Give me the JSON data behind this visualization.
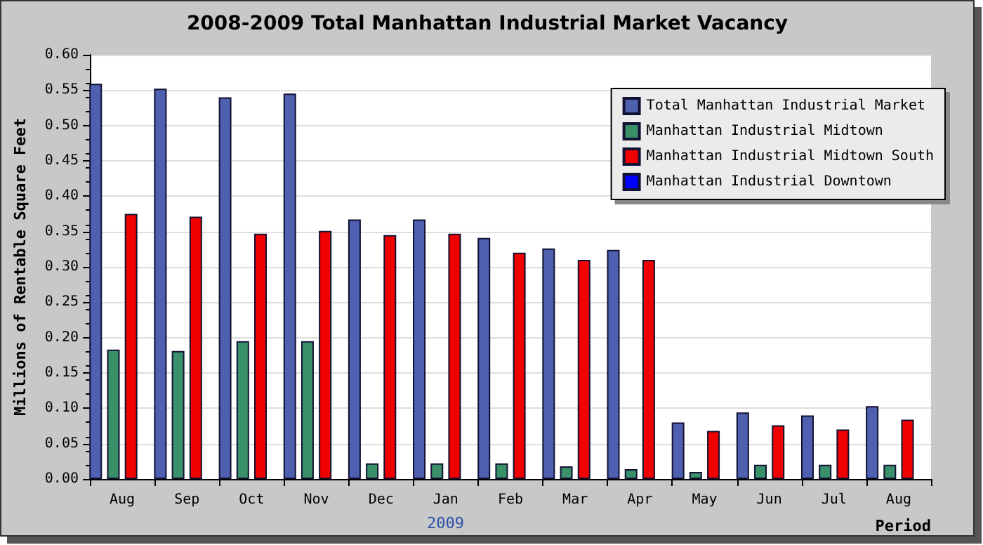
{
  "chart_data": {
    "type": "bar",
    "title": "2008-2009 Total Manhattan Industrial Market Vacancy",
    "xlabel": "Period",
    "ylabel": "Millions of Rentable Square Feet",
    "categories": [
      "Aug",
      "Sep",
      "Oct",
      "Nov",
      "Dec",
      "Jan",
      "Feb",
      "Mar",
      "Apr",
      "May",
      "Jun",
      "Jul",
      "Aug"
    ],
    "series": [
      {
        "name": "Total Manhattan Industrial Market",
        "color": "#5060b0",
        "values": [
          0.559,
          0.552,
          0.54,
          0.545,
          0.367,
          0.367,
          0.341,
          0.326,
          0.324,
          0.08,
          0.094,
          0.09,
          0.103
        ]
      },
      {
        "name": "Manhattan Industrial Midtown",
        "color": "#3a9068",
        "values": [
          0.183,
          0.181,
          0.195,
          0.195,
          0.022,
          0.022,
          0.022,
          0.018,
          0.014,
          0.01,
          0.02,
          0.02,
          0.02
        ]
      },
      {
        "name": "Manhattan Industrial Midtown South",
        "color": "#f00000",
        "values": [
          0.375,
          0.371,
          0.347,
          0.351,
          0.345,
          0.347,
          0.32,
          0.31,
          0.31,
          0.068,
          0.076,
          0.07,
          0.084
        ]
      },
      {
        "name": "Manhattan Industrial Downtown",
        "color": "#0000ff",
        "values": [
          null,
          null,
          null,
          null,
          null,
          null,
          null,
          null,
          null,
          null,
          null,
          null,
          null
        ]
      }
    ],
    "ylim": [
      0,
      0.6
    ],
    "yticks": [
      {
        "value": 0,
        "label": "0.00"
      },
      {
        "value": 0.05,
        "label": "0.05"
      },
      {
        "value": 0.1,
        "label": "0.10"
      },
      {
        "value": 0.15,
        "label": "0.15"
      },
      {
        "value": 0.2,
        "label": "0.20"
      },
      {
        "value": 0.25,
        "label": "0.25"
      },
      {
        "value": 0.3,
        "label": "0.30"
      },
      {
        "value": 0.35,
        "label": "0.35"
      },
      {
        "value": 0.4,
        "label": "0.40"
      },
      {
        "value": 0.45,
        "label": "0.45"
      },
      {
        "value": 0.5,
        "label": "0.50"
      },
      {
        "value": 0.55,
        "label": "0.55"
      },
      {
        "value": 0.6,
        "label": "0.60"
      }
    ],
    "annotations": [
      "2009"
    ],
    "grid": "y",
    "legend": "top right"
  }
}
